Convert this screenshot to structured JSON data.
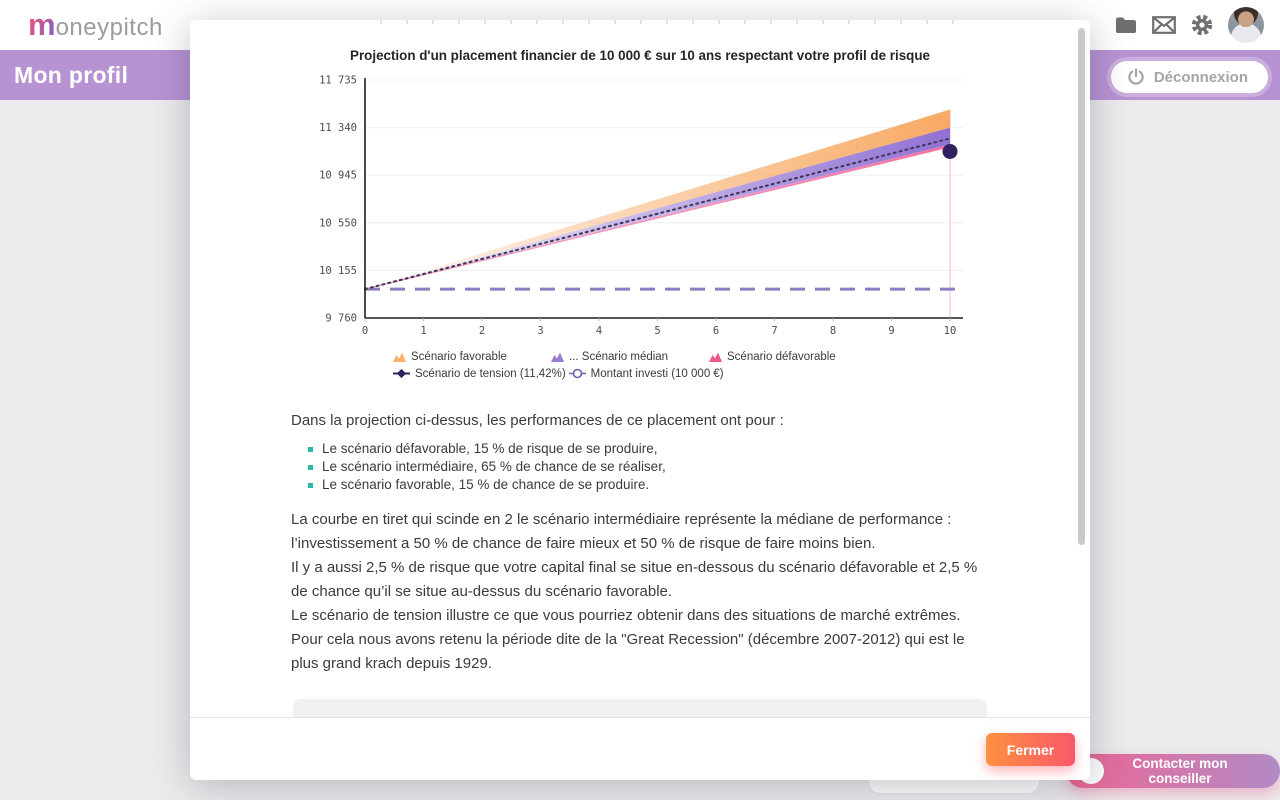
{
  "topbar": {
    "logo_initial": "m",
    "logo_rest": "oneypitch"
  },
  "header": {
    "title": "Mon profil",
    "logout_label": "Déconnexion"
  },
  "chart_data": {
    "type": "area",
    "title": "Projection d'un placement financier de 10 000 € sur 10 ans respectant votre profil de risque",
    "xlabel": "",
    "ylabel": "",
    "grid": true,
    "x_range": [
      0,
      10
    ],
    "xticks": [
      0,
      1,
      2,
      3,
      4,
      5,
      6,
      7,
      8,
      9,
      10
    ],
    "ylim": [
      9760,
      11735
    ],
    "yticks": [
      9760,
      10155,
      10550,
      10945,
      11340,
      11735
    ],
    "start_value": 10000,
    "series": [
      {
        "name": "Scénario favorable",
        "type": "band",
        "color": "#f7a55c",
        "end_top": 11490,
        "end_bottom": 11340
      },
      {
        "name": "Scénario médian",
        "type": "band",
        "color": "#8b6ad1",
        "end_top": 11340,
        "end_bottom": 11200
      },
      {
        "name": "Scénario défavorable",
        "type": "band",
        "color": "#f2679a",
        "end_top": 11200,
        "end_bottom": 11180,
        "edge_stroke": true
      },
      {
        "name": "Médiane",
        "type": "dotted-line",
        "color": "#3f3558",
        "end": 11250
      },
      {
        "name": "Scénario de tension",
        "type": "point",
        "color": "#31215f",
        "x": 10,
        "value": 11142
      },
      {
        "name": "Montant investi",
        "type": "hline-dashed",
        "color": "#8c7ec1",
        "value": 10000
      }
    ],
    "end_marker_line": {
      "x": 10,
      "color": "#f5b8cd"
    },
    "legend_rows": [
      [
        {
          "icon": "area-icon",
          "color": "#f9b26a",
          "label": "Scénario favorable"
        },
        {
          "icon": "area-icon",
          "color": "#9a7ad6",
          "label": "... Scénario médian"
        },
        {
          "icon": "area-icon",
          "color": "#f2568c",
          "label": "Scénario défavorable"
        }
      ],
      [
        {
          "icon": "diamond-line-icon",
          "color": "#31215f",
          "label": "Scénario de tension (11,42%)"
        },
        {
          "icon": "circle-line-icon",
          "color": "#6f5fae",
          "label": "Montant investi (10 000 €)"
        }
      ]
    ]
  },
  "modal": {
    "intro": "Dans la projection ci-dessus, les performances de ce placement ont pour :",
    "bullets": [
      "Le scénario défavorable, 15 % de risque de se produire,",
      "Le scénario intermédiaire, 65 % de chance de se réaliser,",
      "Le scénario favorable, 15 % de chance de se produire."
    ],
    "paragraph_lines": [
      "La courbe en tiret qui scinde en 2 le scénario intermédiaire représente la médiane de performance : l’investissement a 50 % de chance de faire mieux et 50 % de risque de faire moins bien.",
      "Il y a aussi 2,5 % de risque que votre capital final se situe en-dessous du scénario défavorable et 2,5 % de chance qu’il se situe au-dessus du scénario favorable.",
      "Le scénario de tension illustre ce que vous pourriez obtenir dans des situations de marché extrêmes.",
      "Pour cela nous avons retenu la période dite de la \"Great Recession\" (décembre 2007-2012) qui est le plus grand krach depuis 1929."
    ],
    "close_label": "Fermer"
  },
  "background_page": {
    "contact_label": "Contacter mon conseiller"
  },
  "colors": {
    "header_purple": "#b893d3",
    "bullet_teal": "#2ab7ac",
    "close_gradient": [
      "#fe9140",
      "#f9586a"
    ],
    "contact_gradient": [
      "#ee6794",
      "#b18ac5"
    ],
    "logo_gradient": [
      "#e8537f",
      "#8e5fc0"
    ]
  }
}
